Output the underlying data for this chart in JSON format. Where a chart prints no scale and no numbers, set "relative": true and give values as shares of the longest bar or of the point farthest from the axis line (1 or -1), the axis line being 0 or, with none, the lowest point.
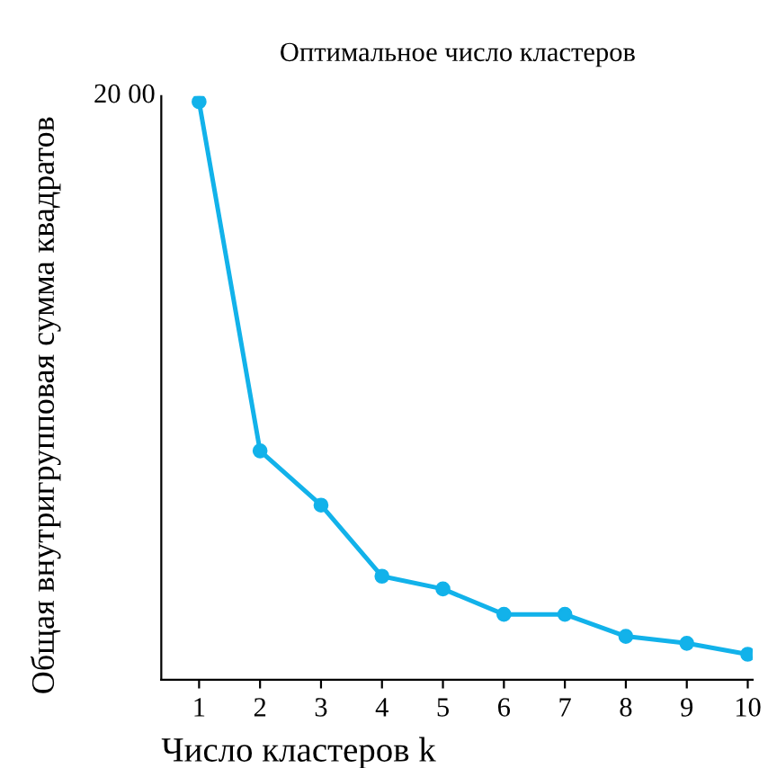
{
  "chart_data": {
    "type": "line",
    "title": "Оптимальное число кластеров",
    "xlabel": "Число кластеров k",
    "ylabel": "Общая внутригрупповая сумма квадратов",
    "x": [
      1,
      2,
      3,
      4,
      5,
      6,
      7,
      8,
      9,
      10
    ],
    "series": [
      {
        "color": "#12b2ea",
        "values": [
          1,
          0.396,
          0.302,
          0.179,
          0.157,
          0.113,
          0.113,
          0.075,
          0.063,
          0.044
        ]
      }
    ],
    "relative": true,
    "xlim": [
      0.38,
      10.08
    ],
    "xticks": [
      1,
      2,
      3,
      4,
      5,
      6,
      7,
      8,
      9,
      10
    ],
    "annotations": [
      "20 00"
    ],
    "marker": "circle",
    "line_style": "solid",
    "grid": false,
    "legend": false
  }
}
